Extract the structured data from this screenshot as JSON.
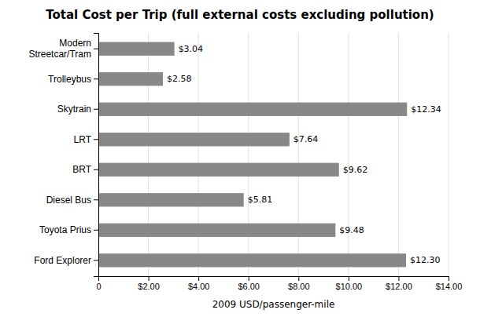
{
  "chart_data": {
    "type": "bar",
    "orientation": "horizontal",
    "title": "Total Cost per Trip (full external costs excluding pollution)",
    "categories": [
      "Ford Explorer",
      "Toyota Prius",
      "Diesel Bus",
      "BRT",
      "LRT",
      "Skytrain",
      "Trolleybus",
      "Modern\nStreetcar/Tram"
    ],
    "values": [
      12.3,
      9.48,
      5.81,
      9.62,
      7.64,
      12.34,
      2.58,
      3.04
    ],
    "value_labels": [
      "$12.30",
      "$9.48",
      "$5.81",
      "$9.62",
      "$7.64",
      "$12.34",
      "$2.58",
      "$3.04"
    ],
    "data_labels": true,
    "color": "#888888",
    "xlabel": "2009 USD/passenger-mile",
    "xlim": [
      0,
      14
    ],
    "xticks": [
      0,
      {
        "value": 2,
        "label": "$2.00"
      },
      {
        "value": 4,
        "label": "$4.00"
      },
      {
        "value": 6,
        "label": "$6.00"
      },
      {
        "value": 8,
        "label": "$8.00"
      },
      {
        "value": 10,
        "label": "$10.00"
      },
      {
        "value": 12,
        "label": "$12.00"
      },
      {
        "value": 14,
        "label": "$14.00"
      }
    ],
    "grid": true
  }
}
